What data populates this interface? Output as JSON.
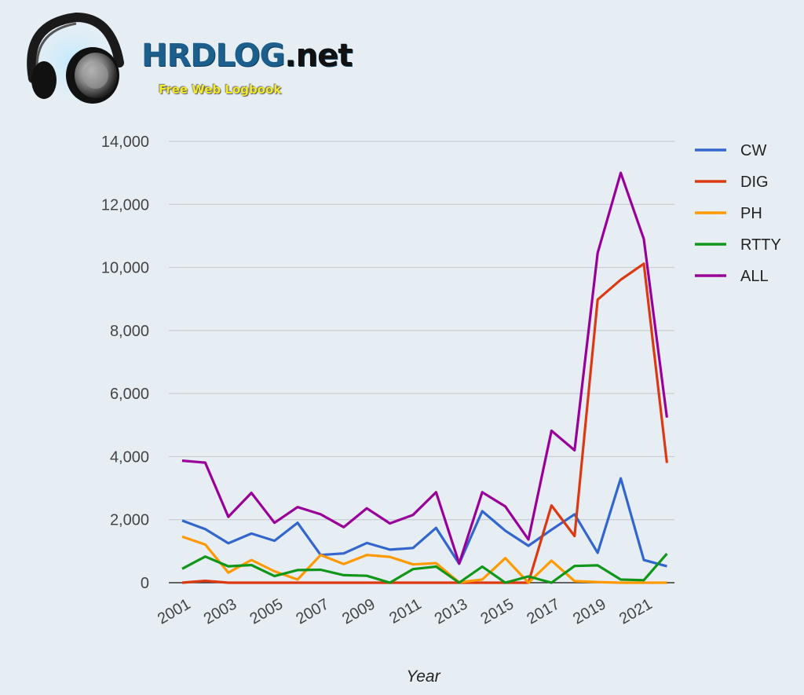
{
  "logo": {
    "brand": "HRDLOG",
    "brand_suffix": ".net",
    "tagline": "Free Web Logbook"
  },
  "chart_data": {
    "type": "line",
    "title": "",
    "xlabel": "Year",
    "ylabel": "",
    "x": [
      2001,
      2002,
      2003,
      2004,
      2005,
      2006,
      2007,
      2008,
      2009,
      2010,
      2011,
      2012,
      2013,
      2014,
      2015,
      2016,
      2017,
      2018,
      2019,
      2020,
      2021,
      2022
    ],
    "x_tick_labels": [
      "2001",
      "2003",
      "2005",
      "2007",
      "2009",
      "2011",
      "2013",
      "2015",
      "2017",
      "2019",
      "2021"
    ],
    "ylim": [
      0,
      14000
    ],
    "y_ticks": [
      0,
      2000,
      4000,
      6000,
      8000,
      10000,
      12000,
      14000
    ],
    "y_tick_labels": [
      "0",
      "2,000",
      "4,000",
      "6,000",
      "8,000",
      "10,000",
      "12,000",
      "14,000"
    ],
    "grid": true,
    "legend_position": "right",
    "series": [
      {
        "name": "CW",
        "color": "#3366cc",
        "values": [
          1970,
          1700,
          1250,
          1560,
          1330,
          1900,
          880,
          930,
          1260,
          1050,
          1100,
          1740,
          600,
          2270,
          1650,
          1170,
          1680,
          2170,
          950,
          3310,
          720,
          520
        ]
      },
      {
        "name": "DIG",
        "color": "#dc3912",
        "values": [
          0,
          60,
          0,
          0,
          0,
          0,
          0,
          0,
          0,
          0,
          0,
          0,
          0,
          0,
          0,
          0,
          2450,
          1480,
          8980,
          9610,
          10120,
          3800
        ]
      },
      {
        "name": "PH",
        "color": "#ff9900",
        "values": [
          1460,
          1210,
          320,
          720,
          360,
          100,
          880,
          590,
          880,
          820,
          580,
          620,
          10,
          100,
          780,
          0,
          700,
          50,
          20,
          0,
          0,
          0
        ]
      },
      {
        "name": "RTTY",
        "color": "#109618",
        "values": [
          440,
          830,
          520,
          560,
          210,
          400,
          410,
          240,
          220,
          0,
          430,
          510,
          0,
          510,
          0,
          200,
          0,
          530,
          550,
          100,
          80,
          920
        ]
      },
      {
        "name": "ALL",
        "color": "#990099",
        "values": [
          3870,
          3810,
          2090,
          2850,
          1900,
          2400,
          2170,
          1760,
          2360,
          1880,
          2150,
          2870,
          610,
          2870,
          2420,
          1370,
          4820,
          4200,
          10460,
          13000,
          10900,
          5240
        ]
      }
    ]
  }
}
